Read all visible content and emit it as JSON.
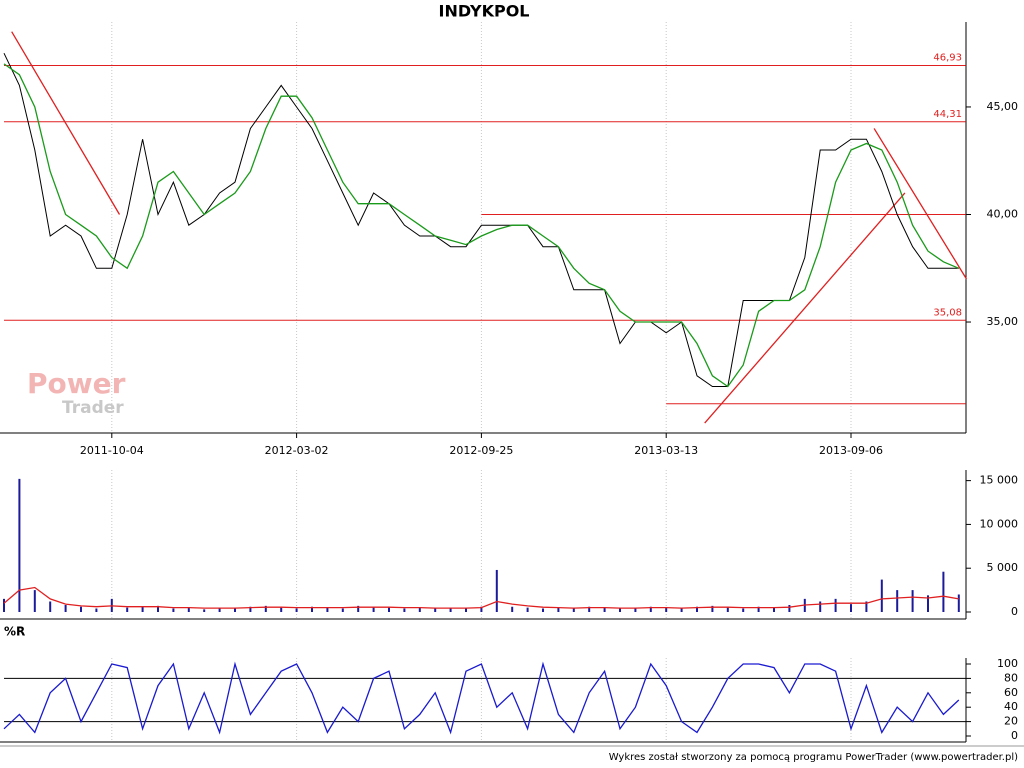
{
  "chart_data": [
    {
      "type": "line",
      "title": "INDYKPOL",
      "watermark": [
        "Power",
        "Trader"
      ],
      "categories": [
        null,
        null,
        null,
        null,
        null,
        null,
        null,
        "2011-10-04",
        null,
        null,
        null,
        null,
        null,
        null,
        null,
        null,
        null,
        null,
        null,
        "2012-03-02",
        null,
        null,
        null,
        null,
        null,
        null,
        null,
        null,
        null,
        null,
        null,
        "2012-09-25",
        null,
        null,
        null,
        null,
        null,
        null,
        null,
        null,
        null,
        null,
        null,
        "2013-03-13",
        null,
        null,
        null,
        null,
        null,
        null,
        null,
        null,
        null,
        null,
        null,
        "2013-09-06",
        null,
        null,
        null,
        null,
        null,
        null,
        null
      ],
      "series": [
        {
          "color": "#000000",
          "values": [
            47.5,
            46,
            43,
            39,
            39.5,
            39,
            37.5,
            37.5,
            40,
            43.5,
            40,
            41.5,
            39.5,
            40,
            41,
            41.5,
            44,
            45,
            46,
            45,
            44,
            42.5,
            41,
            39.5,
            41,
            40.5,
            39.5,
            39,
            39,
            38.5,
            38.5,
            39.5,
            39.5,
            39.5,
            39.5,
            38.5,
            38.5,
            36.5,
            36.5,
            36.5,
            34,
            35,
            35,
            34.5,
            35,
            32.5,
            32,
            32,
            36,
            36,
            36,
            36,
            38,
            43,
            43,
            43.5,
            43.5,
            42,
            40,
            38.5,
            37.5,
            37.5,
            37.5
          ]
        },
        {
          "color": "#1a9a1a",
          "values": [
            47,
            46.5,
            45,
            42,
            40,
            39.5,
            39,
            38,
            37.5,
            39,
            41.5,
            42,
            41,
            40,
            40.5,
            41,
            42,
            44,
            45.5,
            45.5,
            44.5,
            43,
            41.5,
            40.5,
            40.5,
            40.5,
            40,
            39.5,
            39,
            38.8,
            38.6,
            39,
            39.3,
            39.5,
            39.5,
            39,
            38.5,
            37.5,
            36.8,
            36.5,
            35.5,
            35,
            35,
            35,
            35,
            34,
            32.5,
            32,
            33,
            35.5,
            36,
            36,
            36.5,
            38.5,
            41.5,
            43,
            43.3,
            43,
            41.5,
            39.5,
            38.3,
            37.8,
            37.5
          ]
        }
      ],
      "hlines": [
        {
          "value": 46.93,
          "label": "46,93",
          "x0": 0,
          "x1": 62
        },
        {
          "value": 44.31,
          "label": "44,31",
          "x0": 0,
          "x1": 62
        },
        {
          "value": 40,
          "x0": 31,
          "x1": 62
        },
        {
          "value": 35.08,
          "label": "35,08",
          "x0": 0,
          "x1": 62
        },
        {
          "value": 31.2,
          "x0": 43,
          "x1": 62
        }
      ],
      "trendlines": [
        {
          "x0": 0.5,
          "y0": 48.5,
          "x1": 7.5,
          "y1": 40
        },
        {
          "x0": 45.5,
          "y0": 30.3,
          "x1": 58.5,
          "y1": 41
        },
        {
          "x0": 56.5,
          "y0": 44,
          "x1": 62.5,
          "y1": 37
        }
      ],
      "line_color": "#e02020",
      "ylim": [
        29.84,
        48.95
      ],
      "yticks": [
        {
          "value": 35,
          "label": "35,00"
        },
        {
          "value": 40,
          "label": "40,00"
        },
        {
          "value": 45,
          "label": "45,00"
        }
      ],
      "grid": true
    },
    {
      "type": "bar",
      "series": [
        {
          "type": "bar",
          "color": "#1a1a9a",
          "values": [
            1500,
            15200,
            2500,
            1200,
            800,
            600,
            400,
            1500,
            500,
            600,
            700,
            400,
            500,
            300,
            400,
            500,
            600,
            700,
            500,
            400,
            600,
            500,
            400,
            700,
            600,
            500,
            400,
            500,
            400,
            500,
            400,
            600,
            4800,
            600,
            500,
            400,
            500,
            400,
            600,
            500,
            400,
            500,
            600,
            500,
            400,
            600,
            700,
            500,
            400,
            600,
            500,
            800,
            1500,
            1200,
            1500,
            900,
            1200,
            3700,
            2500,
            2500,
            1900,
            4600,
            2000
          ]
        },
        {
          "type": "line",
          "color": "#e02020",
          "values": [
            1000,
            2500,
            2800,
            1500,
            900,
            700,
            600,
            700,
            600,
            600,
            600,
            500,
            500,
            450,
            450,
            450,
            500,
            550,
            550,
            500,
            500,
            500,
            500,
            550,
            550,
            550,
            500,
            500,
            450,
            450,
            450,
            500,
            1200,
            900,
            700,
            550,
            500,
            450,
            500,
            500,
            450,
            450,
            500,
            500,
            450,
            500,
            550,
            550,
            500,
            500,
            500,
            550,
            800,
            900,
            1000,
            1000,
            1000,
            1500,
            1600,
            1700,
            1600,
            1800,
            1500
          ]
        }
      ],
      "ylim": [
        0,
        15300
      ],
      "yticks": [
        0,
        {
          "value": 5000,
          "label": "5 000"
        },
        {
          "value": 10000,
          "label": "10 000"
        },
        {
          "value": 15000,
          "label": "15 000"
        }
      ],
      "grid": true
    },
    {
      "type": "line",
      "title": "%R",
      "series": [
        {
          "color": "#1a1ad0",
          "values": [
            10,
            30,
            5,
            60,
            80,
            20,
            60,
            100,
            95,
            10,
            70,
            100,
            10,
            60,
            5,
            100,
            30,
            60,
            90,
            100,
            60,
            5,
            40,
            20,
            80,
            90,
            10,
            30,
            60,
            5,
            90,
            100,
            40,
            60,
            10,
            100,
            30,
            5,
            60,
            90,
            10,
            40,
            100,
            70,
            20,
            5,
            40,
            80,
            100,
            100,
            95,
            60,
            100,
            100,
            90,
            10,
            70,
            5,
            40,
            20,
            60,
            30,
            50
          ]
        }
      ],
      "hlines": [
        {
          "value": 20,
          "x0": 0,
          "x1": 62
        },
        {
          "value": 80,
          "x0": 0,
          "x1": 62
        }
      ],
      "line_color": "#000000",
      "ylim": [
        0,
        100
      ],
      "yticks": [
        0,
        20,
        40,
        60,
        80,
        100
      ],
      "grid": true
    }
  ],
  "footer": "Wykres został stworzony za pomocą programu PowerTrader (www.powertrader.pl)"
}
